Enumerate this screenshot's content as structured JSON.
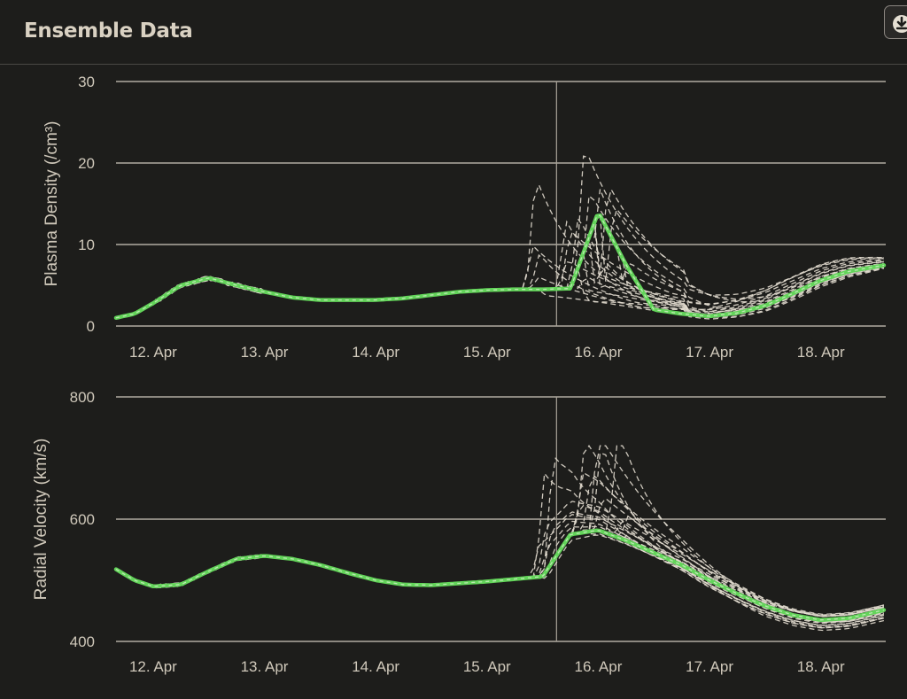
{
  "header": {
    "title": "Ensemble Data",
    "download_icon": "download-icon"
  },
  "colors": {
    "background": "#1d1d1b",
    "grid": "#cfc9bc",
    "ensemble": "#e2dccf",
    "main": "#63d45a"
  },
  "chart_data": [
    {
      "type": "line",
      "ylabel": "Plasma Density (/cm³)",
      "ylim": [
        0,
        30
      ],
      "yticks": [
        0,
        10,
        20,
        30
      ],
      "xlim": [
        "11-Apr 16:00",
        "18-Apr 14:00"
      ],
      "xtick_labels": [
        "12. Apr",
        "13. Apr",
        "14. Apr",
        "15. Apr",
        "16. Apr",
        "17. Apr",
        "18. Apr"
      ],
      "vline": "15-Apr 15:00",
      "main_series": {
        "x": [
          "11-Apr 16:00",
          "11-Apr 20:00",
          "12-Apr 00:00",
          "12-Apr 06:00",
          "12-Apr 12:00",
          "12-Apr 18:00",
          "13-Apr 00:00",
          "13-Apr 06:00",
          "13-Apr 12:00",
          "13-Apr 18:00",
          "14-Apr 00:00",
          "14-Apr 06:00",
          "14-Apr 12:00",
          "14-Apr 18:00",
          "15-Apr 00:00",
          "15-Apr 06:00",
          "15-Apr 12:00",
          "15-Apr 18:00",
          "16-Apr 00:00",
          "16-Apr 06:00",
          "16-Apr 12:00",
          "16-Apr 18:00",
          "17-Apr 00:00",
          "17-Apr 06:00",
          "17-Apr 12:00",
          "17-Apr 18:00",
          "18-Apr 00:00",
          "18-Apr 06:00",
          "18-Apr 14:00"
        ],
        "y": [
          1.0,
          1.5,
          2.8,
          5.0,
          5.9,
          5.0,
          4.2,
          3.5,
          3.2,
          3.2,
          3.2,
          3.4,
          3.8,
          4.2,
          4.4,
          4.5,
          4.5,
          4.6,
          14.0,
          7.5,
          2.0,
          1.5,
          1.2,
          1.6,
          2.5,
          4.0,
          5.6,
          6.7,
          7.5
        ]
      },
      "ensemble_count": 22
    },
    {
      "type": "line",
      "ylabel": "Radial Velocity (km/s)",
      "ylim": [
        400,
        800
      ],
      "yticks": [
        400,
        600,
        800
      ],
      "xlim": [
        "11-Apr 16:00",
        "18-Apr 14:00"
      ],
      "xtick_labels": [
        "12. Apr",
        "13. Apr",
        "14. Apr",
        "15. Apr",
        "16. Apr",
        "17. Apr",
        "18. Apr"
      ],
      "vline": "15-Apr 15:00",
      "main_series": {
        "x": [
          "11-Apr 16:00",
          "11-Apr 20:00",
          "12-Apr 00:00",
          "12-Apr 06:00",
          "12-Apr 12:00",
          "12-Apr 18:00",
          "13-Apr 00:00",
          "13-Apr 06:00",
          "13-Apr 12:00",
          "13-Apr 18:00",
          "14-Apr 00:00",
          "14-Apr 06:00",
          "14-Apr 12:00",
          "14-Apr 18:00",
          "15-Apr 00:00",
          "15-Apr 06:00",
          "15-Apr 12:00",
          "15-Apr 18:00",
          "16-Apr 00:00",
          "16-Apr 06:00",
          "16-Apr 12:00",
          "16-Apr 18:00",
          "17-Apr 00:00",
          "17-Apr 06:00",
          "17-Apr 12:00",
          "17-Apr 18:00",
          "18-Apr 00:00",
          "18-Apr 06:00",
          "18-Apr 14:00"
        ],
        "y": [
          518,
          500,
          490,
          493,
          515,
          535,
          540,
          535,
          525,
          512,
          500,
          493,
          492,
          495,
          498,
          502,
          506,
          575,
          582,
          565,
          545,
          525,
          500,
          478,
          458,
          443,
          435,
          438,
          452
        ]
      },
      "ensemble_count": 22
    }
  ]
}
